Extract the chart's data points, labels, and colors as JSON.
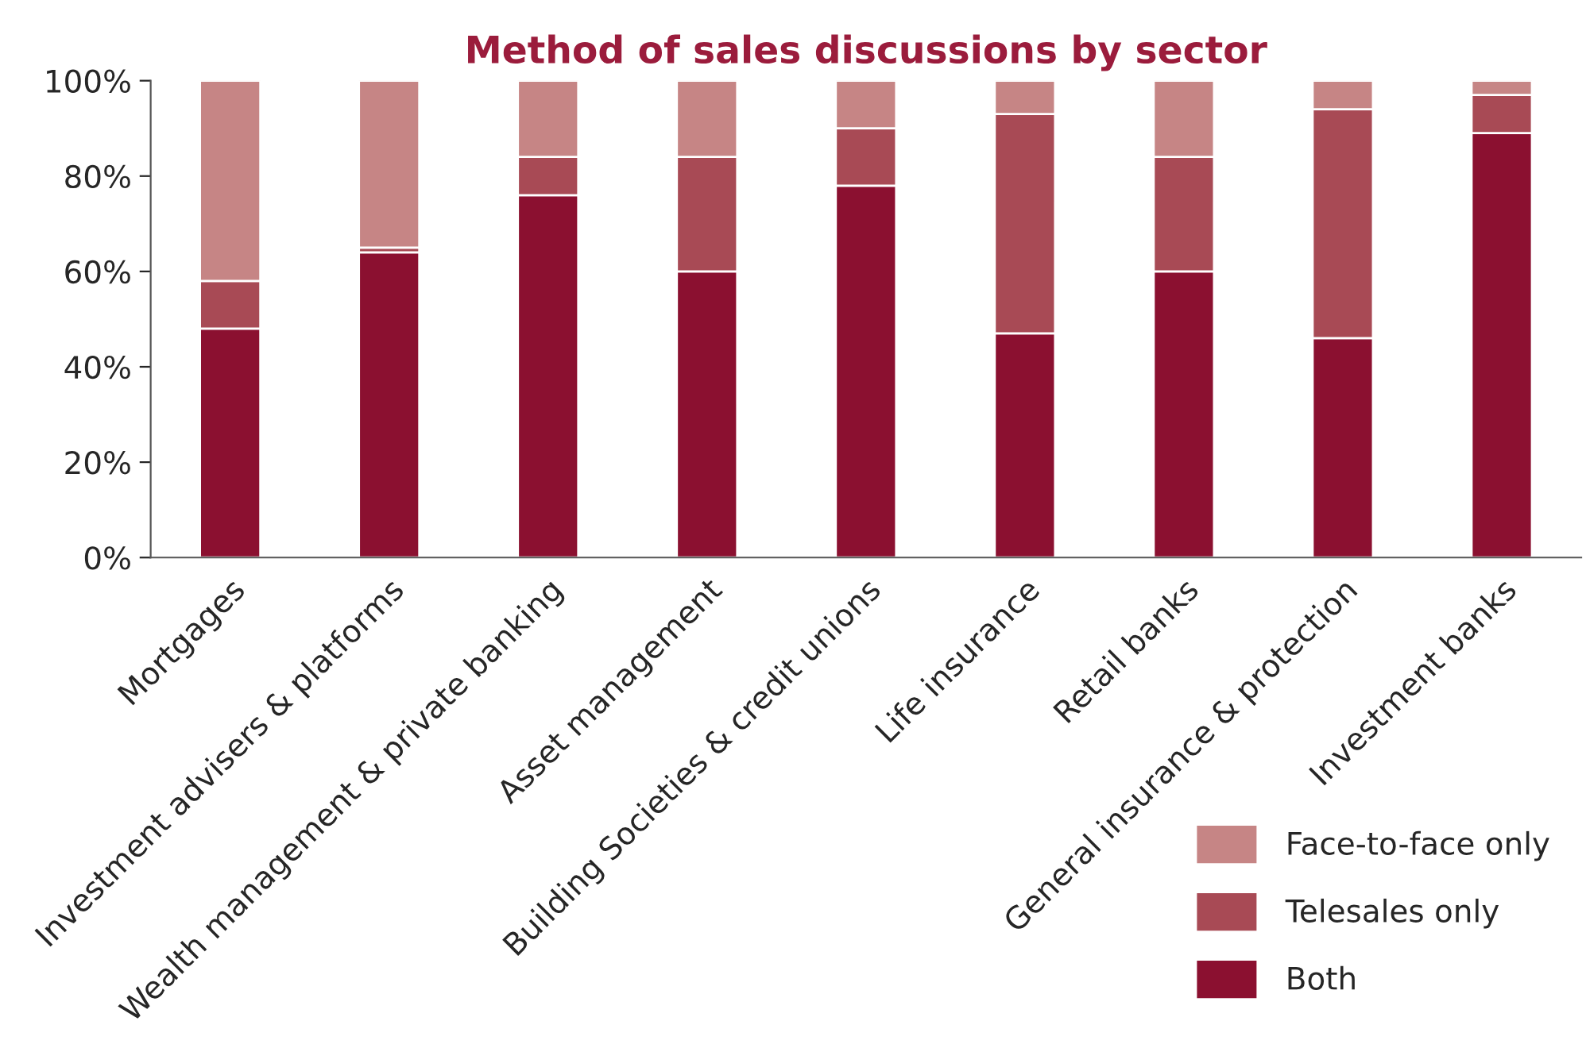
{
  "chart_data": {
    "type": "bar",
    "title": "Method of sales discussions by sector",
    "stacked": true,
    "categories": [
      "Mortgages",
      "Investment advisers & platforms",
      "Wealth management & private banking",
      "Asset management",
      "Building Societies & credit unions",
      "Life insurance",
      "Retail banks",
      "General insurance & protection",
      "Investment banks"
    ],
    "series": [
      {
        "name": "Both",
        "color": "#8b1030",
        "values": [
          48,
          64,
          76,
          60,
          78,
          47,
          60,
          46,
          89
        ]
      },
      {
        "name": "Telesales only",
        "color": "#a84a55",
        "values": [
          10,
          1,
          8,
          24,
          12,
          46,
          24,
          48,
          8
        ]
      },
      {
        "name": "Face-to-face only",
        "color": "#c68585",
        "values": [
          42,
          35,
          16,
          16,
          10,
          7,
          16,
          6,
          3
        ]
      }
    ],
    "ylim": [
      0,
      100
    ],
    "yticks": [
      {
        "value": 0,
        "label": "0%"
      },
      {
        "value": 20,
        "label": "20%"
      },
      {
        "value": 40,
        "label": "40%"
      },
      {
        "value": 60,
        "label": "60%"
      },
      {
        "value": 80,
        "label": "80%"
      },
      {
        "value": 100,
        "label": "100%"
      }
    ],
    "grid": false,
    "legend": "bottom right"
  }
}
